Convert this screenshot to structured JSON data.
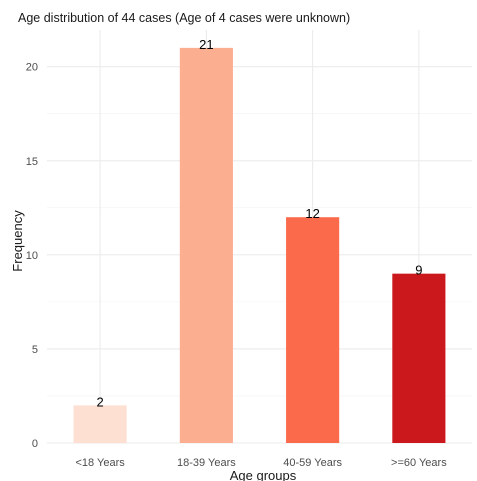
{
  "chart_data": {
    "type": "bar",
    "title": "Age distribution of 44 cases (Age of 4 cases were unknown)",
    "xlabel": "Age groups",
    "ylabel": "Frequency",
    "categories": [
      "<18 Years",
      "18-39 Years",
      "40-59 Years",
      ">=60 Years"
    ],
    "values": [
      2,
      21,
      12,
      9
    ],
    "data_labels": [
      "2",
      "21",
      "12",
      "9"
    ],
    "colors": [
      "#fee0d2",
      "#fcae91",
      "#fb6a4a",
      "#cb181d"
    ],
    "ylim": [
      0,
      21.95
    ],
    "yticks": [
      0,
      5,
      10,
      15,
      20
    ],
    "ytick_labels": [
      "0",
      "5",
      "10",
      "15",
      "20"
    ],
    "grid": true,
    "legend": "none"
  }
}
